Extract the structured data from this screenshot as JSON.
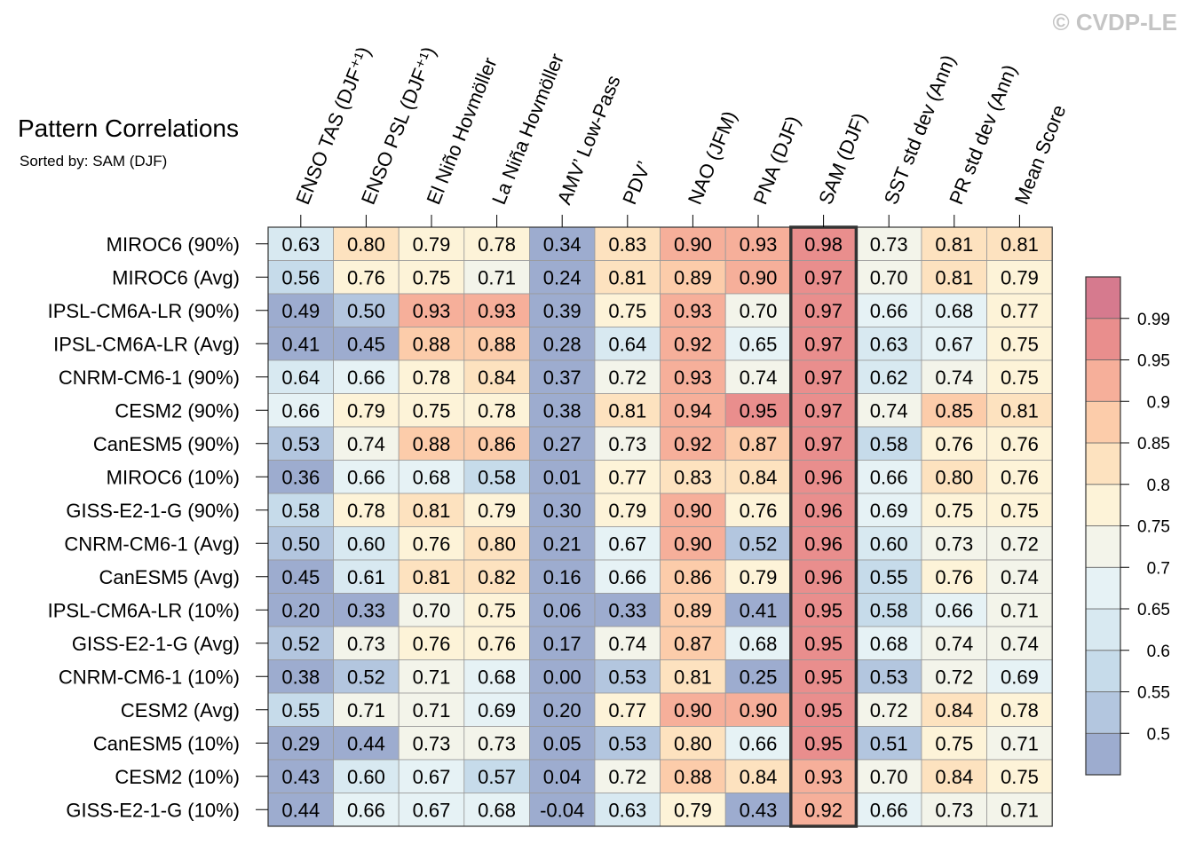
{
  "title": "Pattern Correlations",
  "subtitle": "Sorted by: SAM (DJF)",
  "watermark": "© CVDP-LE",
  "chart_data": {
    "type": "heatmap",
    "columns": [
      "ENSO TAS (DJF⁺¹)",
      "ENSO PSL (DJF⁺¹)",
      "El Niño Hovmöller",
      "La Niña Hovmöller",
      "AMV’ Low-Pass",
      "PDV’",
      "NAO (JFM)",
      "PNA (DJF)",
      "SAM (DJF)",
      "SST std dev (Ann)",
      "PR std dev (Ann)",
      "Mean Score"
    ],
    "rows": [
      "MIROC6 (90%)",
      "MIROC6 (Avg)",
      "IPSL-CM6A-LR (90%)",
      "IPSL-CM6A-LR (Avg)",
      "CNRM-CM6-1 (90%)",
      "CESM2 (90%)",
      "CanESM5 (90%)",
      "MIROC6 (10%)",
      "GISS-E2-1-G (90%)",
      "CNRM-CM6-1 (Avg)",
      "CanESM5 (Avg)",
      "IPSL-CM6A-LR (10%)",
      "GISS-E2-1-G (Avg)",
      "CNRM-CM6-1 (10%)",
      "CESM2 (Avg)",
      "CanESM5 (10%)",
      "CESM2 (10%)",
      "GISS-E2-1-G (10%)"
    ],
    "values": [
      [
        "0.63",
        "0.80",
        "0.79",
        "0.78",
        "0.34",
        "0.83",
        "0.90",
        "0.93",
        "0.98",
        "0.73",
        "0.81",
        "0.81"
      ],
      [
        "0.56",
        "0.76",
        "0.75",
        "0.71",
        "0.24",
        "0.81",
        "0.89",
        "0.90",
        "0.97",
        "0.70",
        "0.81",
        "0.79"
      ],
      [
        "0.49",
        "0.50",
        "0.93",
        "0.93",
        "0.39",
        "0.75",
        "0.93",
        "0.70",
        "0.97",
        "0.66",
        "0.68",
        "0.77"
      ],
      [
        "0.41",
        "0.45",
        "0.88",
        "0.88",
        "0.28",
        "0.64",
        "0.92",
        "0.65",
        "0.97",
        "0.63",
        "0.67",
        "0.75"
      ],
      [
        "0.64",
        "0.66",
        "0.78",
        "0.84",
        "0.37",
        "0.72",
        "0.93",
        "0.74",
        "0.97",
        "0.62",
        "0.74",
        "0.75"
      ],
      [
        "0.66",
        "0.79",
        "0.75",
        "0.78",
        "0.38",
        "0.81",
        "0.94",
        "0.95",
        "0.97",
        "0.74",
        "0.85",
        "0.81"
      ],
      [
        "0.53",
        "0.74",
        "0.88",
        "0.86",
        "0.27",
        "0.73",
        "0.92",
        "0.87",
        "0.97",
        "0.58",
        "0.76",
        "0.76"
      ],
      [
        "0.36",
        "0.66",
        "0.68",
        "0.58",
        "0.01",
        "0.77",
        "0.83",
        "0.84",
        "0.96",
        "0.66",
        "0.80",
        "0.76"
      ],
      [
        "0.58",
        "0.78",
        "0.81",
        "0.79",
        "0.30",
        "0.79",
        "0.90",
        "0.76",
        "0.96",
        "0.69",
        "0.75",
        "0.75"
      ],
      [
        "0.50",
        "0.60",
        "0.76",
        "0.80",
        "0.21",
        "0.67",
        "0.90",
        "0.52",
        "0.96",
        "0.60",
        "0.73",
        "0.72"
      ],
      [
        "0.45",
        "0.61",
        "0.81",
        "0.82",
        "0.16",
        "0.66",
        "0.86",
        "0.79",
        "0.96",
        "0.55",
        "0.76",
        "0.74"
      ],
      [
        "0.20",
        "0.33",
        "0.70",
        "0.75",
        "0.06",
        "0.33",
        "0.89",
        "0.41",
        "0.95",
        "0.58",
        "0.66",
        "0.71"
      ],
      [
        "0.52",
        "0.73",
        "0.76",
        "0.76",
        "0.17",
        "0.74",
        "0.87",
        "0.68",
        "0.95",
        "0.68",
        "0.74",
        "0.74"
      ],
      [
        "0.38",
        "0.52",
        "0.71",
        "0.68",
        "0.00",
        "0.53",
        "0.81",
        "0.25",
        "0.95",
        "0.53",
        "0.72",
        "0.69"
      ],
      [
        "0.55",
        "0.71",
        "0.71",
        "0.69",
        "0.20",
        "0.77",
        "0.90",
        "0.90",
        "0.95",
        "0.72",
        "0.84",
        "0.78"
      ],
      [
        "0.29",
        "0.44",
        "0.73",
        "0.73",
        "0.05",
        "0.53",
        "0.80",
        "0.66",
        "0.95",
        "0.51",
        "0.75",
        "0.71"
      ],
      [
        "0.43",
        "0.60",
        "0.67",
        "0.57",
        "0.04",
        "0.72",
        "0.88",
        "0.84",
        "0.93",
        "0.70",
        "0.84",
        "0.75"
      ],
      [
        "0.44",
        "0.66",
        "0.67",
        "0.68",
        "-0.04",
        "0.63",
        "0.79",
        "0.43",
        "0.92",
        "0.66",
        "0.73",
        "0.71"
      ]
    ],
    "highlighted_column": "SAM (DJF)",
    "colorbar": {
      "ticks": [
        "0.5",
        "0.55",
        "0.6",
        "0.65",
        "0.7",
        "0.75",
        "0.8",
        "0.85",
        "0.9",
        "0.95",
        "0.99"
      ],
      "levels": [
        0.5,
        0.55,
        0.6,
        0.65,
        0.7,
        0.75,
        0.8,
        0.85,
        0.9,
        0.95,
        0.99
      ],
      "colors": [
        "#9daccf",
        "#b3c6df",
        "#c6dbea",
        "#d8e9f1",
        "#e6f2f5",
        "#f3f4ea",
        "#fdf3d8",
        "#fde2bf",
        "#fcccaa",
        "#f6af9a",
        "#e98e8d",
        "#d67a8e"
      ]
    }
  }
}
